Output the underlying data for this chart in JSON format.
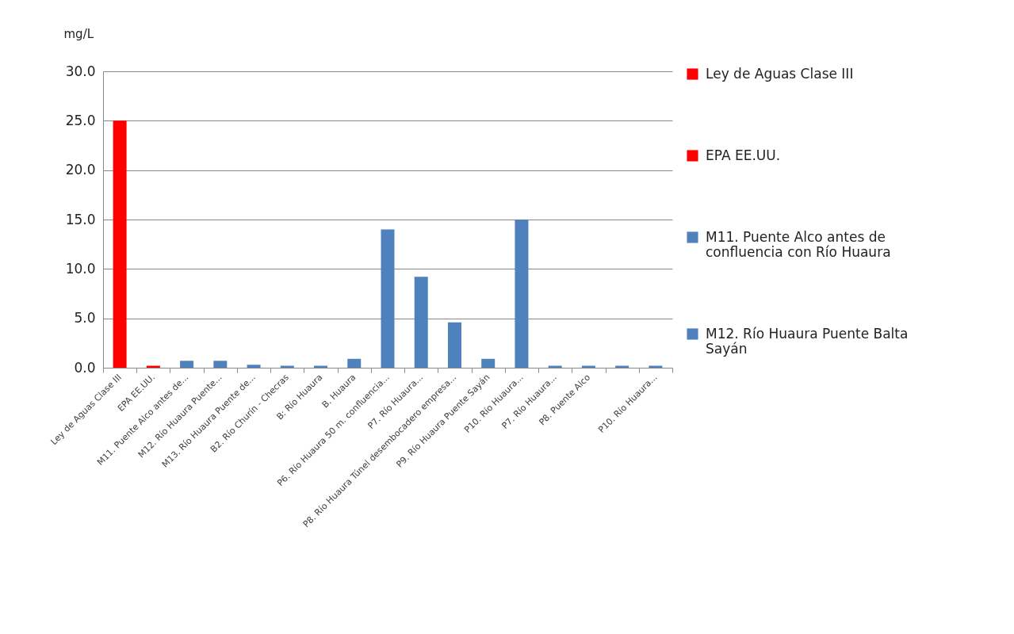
{
  "chart_data": {
    "type": "bar",
    "ylabel": "mg/L",
    "categories": [
      "Ley de Aguas Clase III",
      "EPA EE.UU.",
      "M11. Puente Alco antes de...",
      "M12. Río Huaura Puente...",
      "M13. Río Huaura Puente de...",
      "B2. Río Churín - Checras",
      "B: Río Huaura",
      "B. Huaura",
      "P6. Río Huaura 50 m. confluencia...",
      "P7. Río Huaura...",
      "P8. Río Huaura Túnel desembocadero empresa...",
      "P9. Río Huaura Puente Sayán",
      "P10. Río Huaura...",
      "P7. Río Huaura...",
      "P8. Puente Alco",
      null,
      "P10. Río Huaura..."
    ],
    "series": [
      {
        "name": "Ley de Aguas Clase III",
        "color": "#ff0000",
        "values": [
          25,
          null,
          null,
          null,
          null,
          null,
          null,
          null,
          null,
          null,
          null,
          null,
          null,
          null,
          null,
          null,
          null
        ]
      },
      {
        "name": "EPA EE.UU.",
        "color": "#ff0000",
        "values": [
          null,
          0.2,
          null,
          null,
          null,
          null,
          null,
          null,
          null,
          null,
          null,
          null,
          null,
          null,
          null,
          null,
          null
        ]
      },
      {
        "name": "M11. Puente Alco antes de confluencia con Río Huaura",
        "color": "#4f81bd",
        "values": [
          null,
          null,
          0.7,
          null,
          null,
          null,
          null,
          null,
          null,
          null,
          null,
          null,
          null,
          null,
          null,
          null,
          null
        ]
      },
      {
        "name": "M12. Río Huaura Puente Balta Sayán",
        "color": "#4f81bd",
        "values": [
          null,
          null,
          null,
          0.7,
          null,
          null,
          null,
          null,
          null,
          null,
          null,
          null,
          null,
          null,
          null,
          null,
          null
        ]
      },
      {
        "color": "#4f81bd",
        "values": [
          null,
          null,
          null,
          null,
          0.3,
          0.2,
          0.2,
          0.9,
          14,
          9.2,
          4.6,
          0.9,
          15,
          0.2,
          0.2,
          0.2,
          0.2
        ]
      }
    ],
    "ylim": [
      0,
      30
    ],
    "yticks": [
      {
        "value": 0,
        "label": "0.0"
      },
      {
        "value": 5,
        "label": "5.0"
      },
      {
        "value": 10,
        "label": "10.0"
      },
      {
        "value": 15,
        "label": "15.0"
      },
      {
        "value": 20,
        "label": "20.0"
      },
      {
        "value": 25,
        "label": "25.0"
      },
      {
        "value": 30,
        "label": "30.0"
      }
    ],
    "grid": "y",
    "legend": "right"
  }
}
